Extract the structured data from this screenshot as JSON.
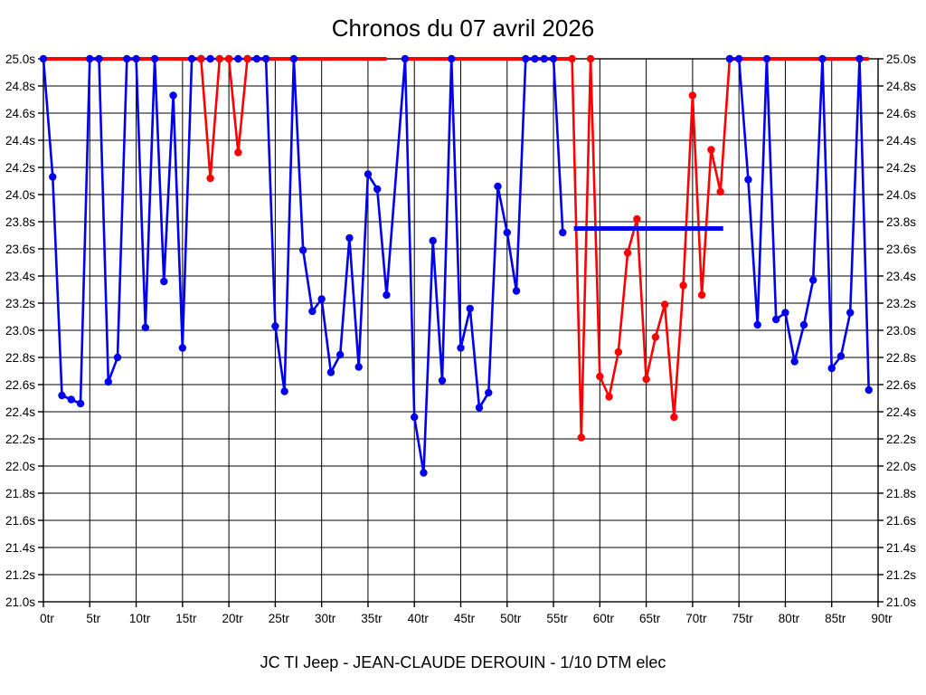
{
  "header": {
    "title": "Chronos du 07 avril 2026"
  },
  "footer": {
    "caption": "JC TI Jeep - JEAN-CLAUDE DEROUIN - 1/10 DTM elec"
  },
  "chart_data": {
    "type": "line",
    "title": "Chronos du 07 avril 2026",
    "xlabel": "",
    "ylabel": "",
    "x_unit": "tr",
    "y_unit": "s",
    "xlim": [
      0,
      90
    ],
    "ylim": [
      21.0,
      25.0
    ],
    "grid": true,
    "legend_position": "none",
    "cap_value": 25.0,
    "x_ticks": [
      {
        "v": 0,
        "label": "0tr"
      },
      {
        "v": 5,
        "label": "5tr"
      },
      {
        "v": 10,
        "label": "10tr"
      },
      {
        "v": 15,
        "label": "15tr"
      },
      {
        "v": 20,
        "label": "20tr"
      },
      {
        "v": 25,
        "label": "25tr"
      },
      {
        "v": 30,
        "label": "30tr"
      },
      {
        "v": 35,
        "label": "35tr"
      },
      {
        "v": 40,
        "label": "40tr"
      },
      {
        "v": 45,
        "label": "45tr"
      },
      {
        "v": 50,
        "label": "50tr"
      },
      {
        "v": 55,
        "label": "55tr"
      },
      {
        "v": 60,
        "label": "60tr"
      },
      {
        "v": 65,
        "label": "65tr"
      },
      {
        "v": 70,
        "label": "70tr"
      },
      {
        "v": 75,
        "label": "75tr"
      },
      {
        "v": 80,
        "label": "80tr"
      },
      {
        "v": 85,
        "label": "85tr"
      },
      {
        "v": 90,
        "label": "90tr"
      }
    ],
    "y_ticks": [
      {
        "v": 25.0,
        "label": "25.0s"
      },
      {
        "v": 24.8,
        "label": "24.8s"
      },
      {
        "v": 24.6,
        "label": "24.6s"
      },
      {
        "v": 24.4,
        "label": "24.4s"
      },
      {
        "v": 24.2,
        "label": "24.2s"
      },
      {
        "v": 24.0,
        "label": "24.0s"
      },
      {
        "v": 23.8,
        "label": "23.8s"
      },
      {
        "v": 23.6,
        "label": "23.6s"
      },
      {
        "v": 23.4,
        "label": "23.4s"
      },
      {
        "v": 23.2,
        "label": "23.2s"
      },
      {
        "v": 23.0,
        "label": "23.0s"
      },
      {
        "v": 22.8,
        "label": "22.8s"
      },
      {
        "v": 22.6,
        "label": "22.6s"
      },
      {
        "v": 22.4,
        "label": "22.4s"
      },
      {
        "v": 22.2,
        "label": "22.2s"
      },
      {
        "v": 22.0,
        "label": "22.0s"
      },
      {
        "v": 21.8,
        "label": "21.8s"
      },
      {
        "v": 21.6,
        "label": "21.6s"
      },
      {
        "v": 21.4,
        "label": "21.4s"
      },
      {
        "v": 21.2,
        "label": "21.2s"
      },
      {
        "v": 21.0,
        "label": "21.0s"
      }
    ],
    "series": [
      {
        "name": "red-driver",
        "color": "#ff0000",
        "segments": [
          {
            "markers": false,
            "width": 4,
            "top": false,
            "points": [
              [
                0,
                25.0
              ],
              [
                17,
                25.0
              ]
            ]
          },
          {
            "markers": false,
            "width": 4,
            "top": false,
            "points": [
              [
                22,
                25.0
              ],
              [
                37,
                25.0
              ]
            ]
          },
          {
            "markers": false,
            "width": 4,
            "top": false,
            "points": [
              [
                39,
                25.0
              ],
              [
                57,
                25.0
              ]
            ]
          },
          {
            "markers": false,
            "width": 4,
            "top": false,
            "points": [
              [
                74,
                25.0
              ],
              [
                89,
                25.0
              ]
            ]
          },
          {
            "markers": true,
            "width": 2.6,
            "top": true,
            "points": [
              [
                17,
                25.0
              ],
              [
                18,
                24.12
              ],
              [
                19,
                25.0
              ],
              [
                20,
                25.0
              ],
              [
                21,
                24.31
              ],
              [
                22,
                25.0
              ]
            ]
          },
          {
            "markers": true,
            "width": 2.6,
            "top": false,
            "points": [
              [
                57,
                25.0
              ],
              [
                58,
                22.21
              ],
              [
                59,
                25.0
              ],
              [
                60,
                22.66
              ],
              [
                61,
                22.51
              ],
              [
                62,
                22.84
              ],
              [
                63,
                23.57
              ],
              [
                64,
                23.82
              ],
              [
                65,
                22.64
              ],
              [
                66,
                22.95
              ],
              [
                67,
                23.19
              ],
              [
                68,
                22.36
              ],
              [
                69,
                23.33
              ],
              [
                70,
                24.73
              ],
              [
                71,
                23.26
              ],
              [
                72,
                24.33
              ],
              [
                73,
                24.02
              ],
              [
                74,
                25.0
              ]
            ]
          }
        ]
      },
      {
        "name": "blue-driver",
        "color": "#0000ee",
        "segments": [
          {
            "markers": true,
            "width": 2.6,
            "top": false,
            "points": [
              [
                0,
                25.0
              ],
              [
                1,
                24.13
              ],
              [
                2,
                22.52
              ],
              [
                3,
                22.49
              ],
              [
                4,
                22.46
              ],
              [
                5,
                25.0
              ],
              [
                6,
                25.0
              ],
              [
                7,
                22.62
              ],
              [
                8,
                22.8
              ],
              [
                9,
                25.0
              ],
              [
                10,
                25.0
              ],
              [
                11,
                23.02
              ],
              [
                12,
                25.0
              ],
              [
                13,
                23.36
              ],
              [
                14,
                24.73
              ],
              [
                15,
                22.87
              ],
              [
                16,
                25.0
              ],
              [
                17,
                25.0
              ],
              [
                18,
                25.0
              ],
              [
                19,
                25.0
              ],
              [
                20,
                25.0
              ],
              [
                21,
                25.0
              ],
              [
                22,
                25.0
              ],
              [
                23,
                25.0
              ],
              [
                24,
                25.0
              ],
              [
                25,
                23.03
              ],
              [
                26,
                22.55
              ],
              [
                27,
                25.0
              ],
              [
                28,
                23.59
              ],
              [
                29,
                23.14
              ],
              [
                30,
                23.23
              ],
              [
                31,
                22.69
              ],
              [
                32,
                22.82
              ],
              [
                33,
                23.68
              ],
              [
                34,
                22.73
              ],
              [
                35,
                24.15
              ],
              [
                36,
                24.04
              ],
              [
                37,
                23.26
              ],
              [
                39,
                25.0
              ],
              [
                40,
                22.36
              ],
              [
                41,
                21.95
              ],
              [
                42,
                23.66
              ],
              [
                43,
                22.63
              ],
              [
                44,
                25.0
              ],
              [
                45,
                22.87
              ],
              [
                46,
                23.16
              ],
              [
                47,
                22.43
              ],
              [
                48,
                22.54
              ],
              [
                49,
                24.06
              ],
              [
                50,
                23.72
              ],
              [
                51,
                23.29
              ],
              [
                52,
                25.0
              ],
              [
                53,
                25.0
              ],
              [
                54,
                25.0
              ],
              [
                55,
                25.0
              ],
              [
                56,
                23.72
              ]
            ]
          },
          {
            "markers": true,
            "width": 2.6,
            "top": false,
            "points": [
              [
                74,
                25.0
              ],
              [
                75,
                25.0
              ],
              [
                76,
                24.11
              ],
              [
                77,
                23.04
              ],
              [
                78,
                25.0
              ],
              [
                79,
                23.08
              ],
              [
                80,
                23.13
              ],
              [
                81,
                22.77
              ],
              [
                82,
                23.04
              ],
              [
                83,
                23.37
              ],
              [
                84,
                25.0
              ],
              [
                85,
                22.72
              ],
              [
                86,
                22.81
              ],
              [
                87,
                23.13
              ],
              [
                88,
                25.0
              ],
              [
                89,
                22.56
              ]
            ]
          }
        ]
      }
    ],
    "annotations": [
      {
        "name": "blue-average-line",
        "type": "hline-segment",
        "color": "#0000ee",
        "width": 5,
        "y": 23.75,
        "x1": 57.2,
        "x2": 73.3
      }
    ]
  }
}
